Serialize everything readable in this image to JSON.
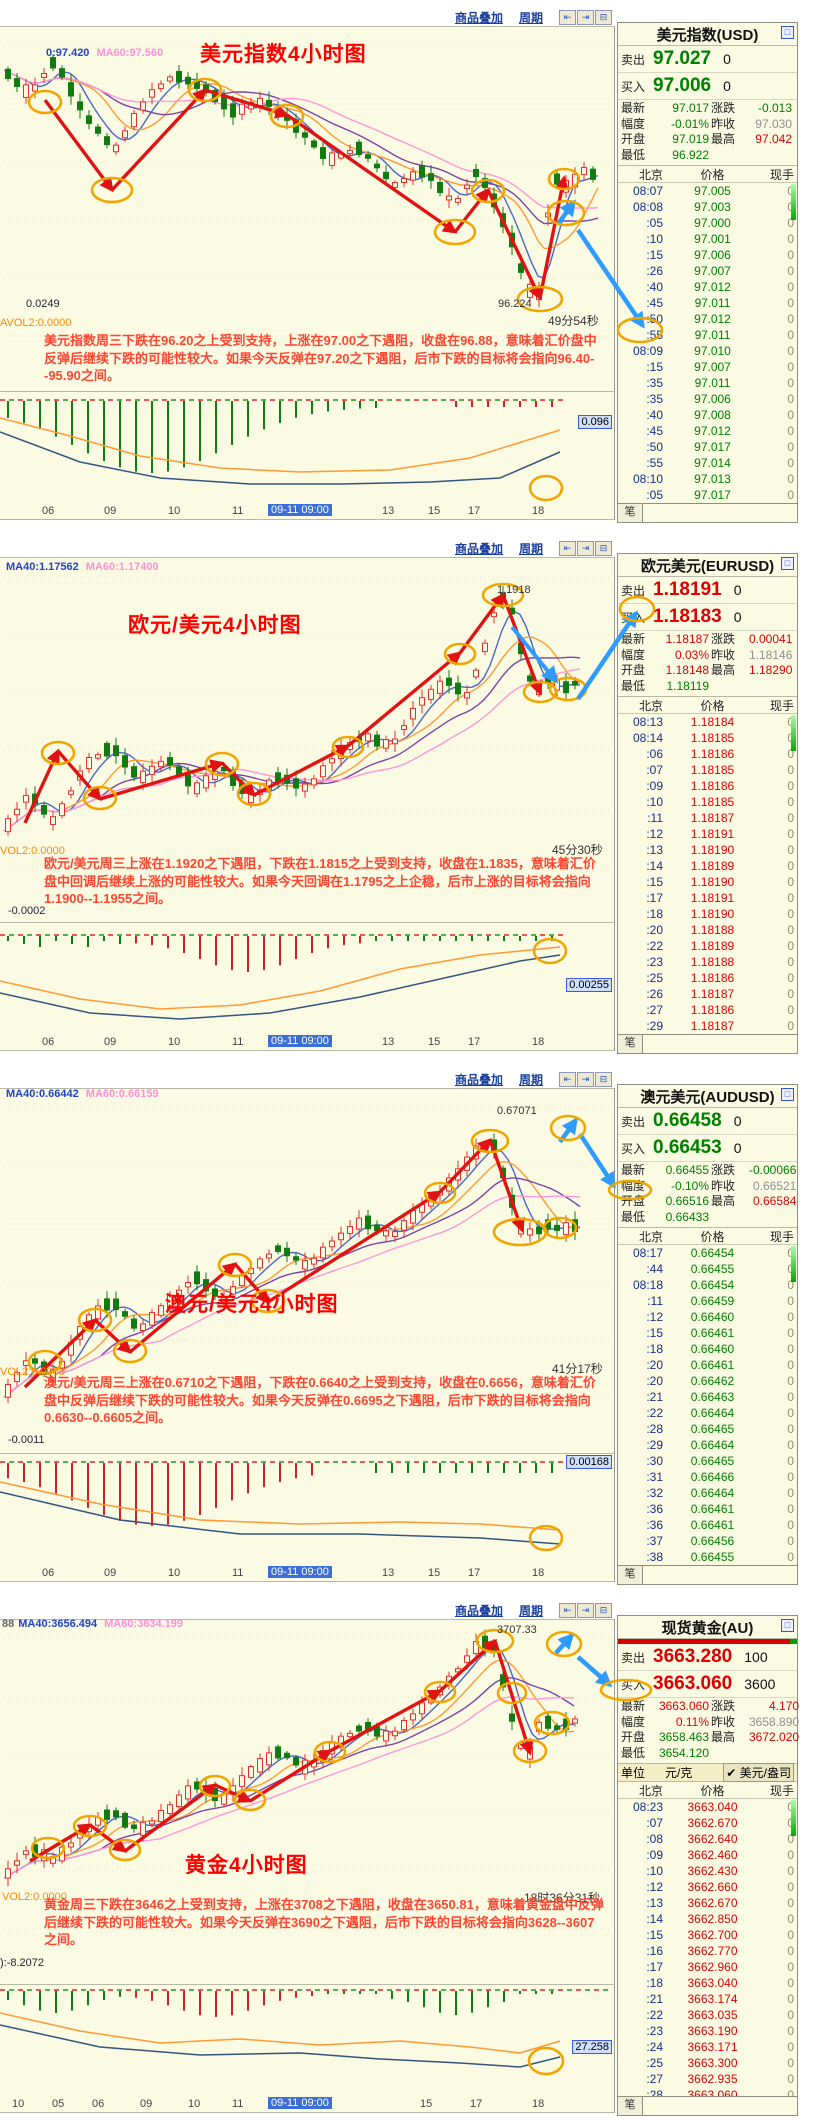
{
  "panels": [
    {
      "toolbar": {
        "overlay": "商品叠加",
        "period": "周期",
        "btn1": "⇤",
        "btn2": "⇥",
        "btn3": "⊟"
      },
      "chart": {
        "ma_prefix": "",
        "ma40": "0:97.420",
        "ma60": "MA60:97.560",
        "title": "美元指数4小时图",
        "price_label": "96.224",
        "countdown": "49分54秒",
        "annotation": "美元指数周三下跌在96.20之上受到支持，上涨在97.00之下遇阻，收盘在96.88，意味着汇价盘中反弹后继续下跌的可能性较大。如果今天反弹在97.20之下遇阻，后市下跌的目标将会指向96.40--95.90之间。",
        "macd_value": "0.0249",
        "vol_label": "AVOL2:0.0000",
        "indicator_value": "0.096",
        "x_pre": [
          "06",
          "09",
          "10",
          "11"
        ],
        "x_box": "09-11 09:00",
        "x_post": [
          "13",
          "15",
          "17",
          "18"
        ]
      },
      "quote": {
        "title": "美元指数(USD)",
        "max_icon": "□",
        "sell_label": "卖出",
        "sell_price": "97.027",
        "sell_vol": "0",
        "buy_label": "买入",
        "buy_price": "97.006",
        "buy_vol": "0",
        "price_color": "#008000",
        "stats": [
          {
            "l": "最新",
            "v": "97.017",
            "c": "g"
          },
          {
            "l": "涨跌",
            "v": "-0.013",
            "c": "g"
          },
          {
            "l": "幅度",
            "v": "-0.01%",
            "c": "g"
          },
          {
            "l": "昨收",
            "v": "97.030",
            "c": "k"
          },
          {
            "l": "开盘",
            "v": "97.019",
            "c": "g"
          },
          {
            "l": "最高",
            "v": "97.042",
            "c": "r"
          },
          {
            "l": "最低",
            "v": "96.922",
            "c": "g"
          }
        ],
        "col_time": "北京",
        "col_price": "价格",
        "col_vol": "现手",
        "rows": [
          [
            "08:07",
            "97.005",
            "0"
          ],
          [
            "08:08",
            "97.003",
            "0"
          ],
          [
            ":05",
            "97.000",
            "0"
          ],
          [
            ":10",
            "97.001",
            "0"
          ],
          [
            ":15",
            "97.006",
            "0"
          ],
          [
            ":26",
            "97.007",
            "0"
          ],
          [
            ":40",
            "97.012",
            "0"
          ],
          [
            ":45",
            "97.011",
            "0"
          ],
          [
            ":50",
            "97.012",
            "0"
          ],
          [
            ":55",
            "97.011",
            "0"
          ],
          [
            "08:09",
            "97.010",
            "0"
          ],
          [
            ":15",
            "97.007",
            "0"
          ],
          [
            ":35",
            "97.011",
            "0"
          ],
          [
            ":35",
            "97.006",
            "0"
          ],
          [
            ":40",
            "97.008",
            "0"
          ],
          [
            ":45",
            "97.012",
            "0"
          ],
          [
            ":50",
            "97.017",
            "0"
          ],
          [
            ":55",
            "97.014",
            "0"
          ],
          [
            "08:10",
            "97.013",
            "0"
          ],
          [
            ":05",
            "97.017",
            "0"
          ]
        ],
        "tab": "笔"
      }
    },
    {
      "toolbar": {
        "overlay": "商品叠加",
        "period": "周期",
        "btn1": "⇤",
        "btn2": "⇥",
        "btn3": "⊟"
      },
      "chart": {
        "ma_prefix": "",
        "ma40": "MA40:1.17562",
        "ma60": "MA60:1.17400",
        "title": "欧元/美元4小时图",
        "price_label": "1.1918",
        "countdown": "45分30秒",
        "annotation": "欧元/美元周三上涨在1.1920之下遇阻，下跌在1.1815之上受到支持，收盘在1.1835，意味着汇价盘中回调后继续上涨的可能性较大。如果今天回调在1.1795之上企稳，后市上涨的目标将会指向1.1900--1.1955之间。",
        "macd_value": "-0.0002",
        "vol_label": "VOL2:0.0000",
        "indicator_value": "0.00255",
        "x_pre": [
          "06",
          "09",
          "10",
          "11"
        ],
        "x_box": "09-11 09:00",
        "x_post": [
          "13",
          "15",
          "17",
          "18"
        ]
      },
      "quote": {
        "title": "欧元美元(EURUSD)",
        "max_icon": "□",
        "sell_label": "卖出",
        "sell_price": "1.18191",
        "sell_vol": "0",
        "buy_label": "买入",
        "buy_price": "1.18183",
        "buy_vol": "0",
        "price_color": "#dd0000",
        "stats": [
          {
            "l": "最新",
            "v": "1.18187",
            "c": "r"
          },
          {
            "l": "涨跌",
            "v": "0.00041",
            "c": "r"
          },
          {
            "l": "幅度",
            "v": "0.03%",
            "c": "r"
          },
          {
            "l": "昨收",
            "v": "1.18146",
            "c": "k"
          },
          {
            "l": "开盘",
            "v": "1.18148",
            "c": "r"
          },
          {
            "l": "最高",
            "v": "1.18290",
            "c": "r"
          },
          {
            "l": "最低",
            "v": "1.18119",
            "c": "g"
          }
        ],
        "col_time": "北京",
        "col_price": "价格",
        "col_vol": "现手",
        "rows": [
          [
            "08:13",
            "1.18184",
            "0"
          ],
          [
            "08:14",
            "1.18185",
            "0"
          ],
          [
            ":06",
            "1.18186",
            "0"
          ],
          [
            ":07",
            "1.18185",
            "0"
          ],
          [
            ":09",
            "1.18186",
            "0"
          ],
          [
            ":10",
            "1.18185",
            "0"
          ],
          [
            ":11",
            "1.18187",
            "0"
          ],
          [
            ":12",
            "1.18191",
            "0"
          ],
          [
            ":13",
            "1.18190",
            "0"
          ],
          [
            ":14",
            "1.18189",
            "0"
          ],
          [
            ":15",
            "1.18190",
            "0"
          ],
          [
            ":17",
            "1.18191",
            "0"
          ],
          [
            ":18",
            "1.18190",
            "0"
          ],
          [
            ":20",
            "1.18188",
            "0"
          ],
          [
            ":22",
            "1.18189",
            "0"
          ],
          [
            ":23",
            "1.18188",
            "0"
          ],
          [
            ":25",
            "1.18186",
            "0"
          ],
          [
            ":26",
            "1.18187",
            "0"
          ],
          [
            ":27",
            "1.18186",
            "0"
          ],
          [
            ":29",
            "1.18187",
            "0"
          ]
        ],
        "tab": "笔"
      }
    },
    {
      "toolbar": {
        "overlay": "商品叠加",
        "period": "周期",
        "btn1": "⇤",
        "btn2": "⇥",
        "btn3": "⊟"
      },
      "chart": {
        "ma_prefix": "",
        "ma40": "MA40:0.66442",
        "ma60": "MA60:0.66159",
        "title": "澳元/美元4小时图",
        "price_label": "0.67071",
        "countdown": "41分17秒",
        "annotation": "澳元/美元周三上涨在0.6710之下遇阻，下跌在0.6640之上受到支持，收盘在0.6656，意味着汇价盘中反弹后继续下跌的可能性较大。如果今天反弹在0.6695之下遇阻，后市下跌的目标将会指向0.6630--0.6605之间。",
        "macd_value": "-0.0011",
        "vol_label": "VOL2:0.0000",
        "indicator_value": "0.00168",
        "x_pre": [
          "06",
          "09",
          "10",
          "11"
        ],
        "x_box": "09-11 09:00",
        "x_post": [
          "13",
          "15",
          "17",
          "18"
        ]
      },
      "quote": {
        "title": "澳元美元(AUDUSD)",
        "max_icon": "□",
        "sell_label": "卖出",
        "sell_price": "0.66458",
        "sell_vol": "0",
        "buy_label": "买入",
        "buy_price": "0.66453",
        "buy_vol": "0",
        "price_color": "#008000",
        "stats": [
          {
            "l": "最新",
            "v": "0.66455",
            "c": "g"
          },
          {
            "l": "涨跌",
            "v": "-0.00066",
            "c": "g"
          },
          {
            "l": "幅度",
            "v": "-0.10%",
            "c": "g"
          },
          {
            "l": "昨收",
            "v": "0.66521",
            "c": "k"
          },
          {
            "l": "开盘",
            "v": "0.66516",
            "c": "g"
          },
          {
            "l": "最高",
            "v": "0.66584",
            "c": "r"
          },
          {
            "l": "最低",
            "v": "0.66433",
            "c": "g"
          }
        ],
        "col_time": "北京",
        "col_price": "价格",
        "col_vol": "现手",
        "rows": [
          [
            "08:17",
            "0.66454",
            "0"
          ],
          [
            ":44",
            "0.66455",
            "0"
          ],
          [
            "08:18",
            "0.66454",
            "0"
          ],
          [
            ":11",
            "0.66459",
            "0"
          ],
          [
            ":12",
            "0.66460",
            "0"
          ],
          [
            ":15",
            "0.66461",
            "0"
          ],
          [
            ":18",
            "0.66460",
            "0"
          ],
          [
            ":20",
            "0.66461",
            "0"
          ],
          [
            ":20",
            "0.66462",
            "0"
          ],
          [
            ":21",
            "0.66463",
            "0"
          ],
          [
            ":22",
            "0.66464",
            "0"
          ],
          [
            ":28",
            "0.66465",
            "0"
          ],
          [
            ":29",
            "0.66464",
            "0"
          ],
          [
            ":30",
            "0.66465",
            "0"
          ],
          [
            ":31",
            "0.66466",
            "0"
          ],
          [
            ":32",
            "0.66464",
            "0"
          ],
          [
            ":36",
            "0.66461",
            "0"
          ],
          [
            ":36",
            "0.66461",
            "0"
          ],
          [
            ":37",
            "0.66456",
            "0"
          ],
          [
            ":38",
            "0.66455",
            "0"
          ]
        ],
        "tab": "笔"
      }
    },
    {
      "toolbar": {
        "overlay": "商品叠加",
        "period": "周期",
        "btn1": "⇤",
        "btn2": "⇥",
        "btn3": "⊟"
      },
      "chart": {
        "ma_prefix": "88",
        "ma40": "MA40:3656.494",
        "ma60": "MA60:3634.199",
        "title": "黄金4小时图",
        "price_label": "3707.33",
        "countdown": "18时36分31秒",
        "annotation": "黄金周三下跌在3646之上受到支持，上涨在3708之下遇阻，收盘在3650.81，意味着黄金盘中反弹后继续下跌的可能性较大。如果今天反弹在3690之下遇阻，后市下跌的目标将会指向3628--3607之间。",
        "macd_value": "):-8.2072",
        "vol_label": "VOL2:0.0000",
        "indicator_value": "27.258",
        "x_pre": [
          "10",
          "05",
          "06",
          "09",
          "10",
          "11"
        ],
        "x_box": "09-11 09:00",
        "x_post": [
          "15",
          "17",
          "18"
        ]
      },
      "quote": {
        "title": "现货黄金(AU)",
        "max_icon": "□",
        "sell_label": "卖出",
        "sell_price": "3663.280",
        "sell_vol": "100",
        "buy_label": "买入",
        "buy_price": "3663.060",
        "buy_vol": "3600",
        "price_color": "#dd0000",
        "strength_bar": true,
        "unit": {
          "label": "单位",
          "opt1": "元/克",
          "check": "✔",
          "opt2": "美元/盎司"
        },
        "stats": [
          {
            "l": "最新",
            "v": "3663.060",
            "c": "r"
          },
          {
            "l": "涨跌",
            "v": "4.170",
            "c": "r"
          },
          {
            "l": "幅度",
            "v": "0.11%",
            "c": "r"
          },
          {
            "l": "昨收",
            "v": "3658.890",
            "c": "k"
          },
          {
            "l": "开盘",
            "v": "3658.463",
            "c": "g"
          },
          {
            "l": "最高",
            "v": "3672.020",
            "c": "r"
          },
          {
            "l": "最低",
            "v": "3654.120",
            "c": "g"
          }
        ],
        "col_time": "北京",
        "col_price": "价格",
        "col_vol": "现手",
        "rows": [
          [
            "08:23",
            "3663.040",
            "0"
          ],
          [
            ":07",
            "3662.670",
            "0"
          ],
          [
            ":08",
            "3662.640",
            "0"
          ],
          [
            ":09",
            "3662.460",
            "0"
          ],
          [
            ":10",
            "3662.430",
            "0"
          ],
          [
            ":12",
            "3662.660",
            "0"
          ],
          [
            ":13",
            "3662.670",
            "0"
          ],
          [
            ":14",
            "3662.850",
            "0"
          ],
          [
            ":15",
            "3662.700",
            "0"
          ],
          [
            ":16",
            "3662.770",
            "0"
          ],
          [
            ":17",
            "3662.960",
            "0"
          ],
          [
            ":18",
            "3663.040",
            "0"
          ],
          [
            ":21",
            "3663.174",
            "0"
          ],
          [
            ":22",
            "3663.035",
            "0"
          ],
          [
            ":23",
            "3663.190",
            "0"
          ],
          [
            ":24",
            "3663.171",
            "0"
          ],
          [
            ":25",
            "3663.300",
            "0"
          ],
          [
            ":27",
            "3662.935",
            "0"
          ],
          [
            ":28",
            "3663.060",
            "0"
          ]
        ],
        "tab": "笔"
      }
    }
  ],
  "colors": {
    "up": "#dd0000",
    "down": "#008000",
    "neutral": "#8f8f8f",
    "accent_ellipse": "#f0a600",
    "arrow_blue": "#2e9bff"
  }
}
